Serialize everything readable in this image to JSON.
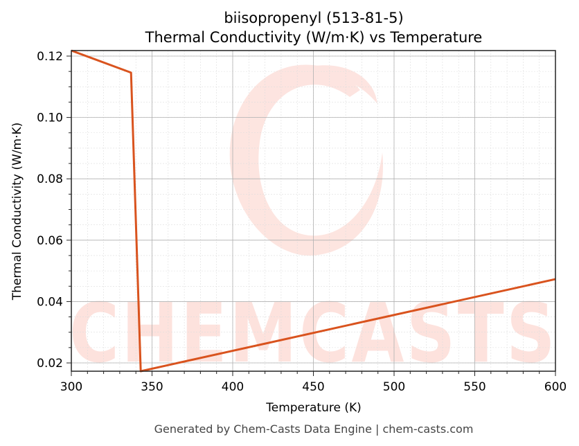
{
  "chart_data": {
    "type": "line",
    "title": "biisopropenyl (513-81-5)",
    "subtitle": "Thermal Conductivity (W/m·K) vs Temperature",
    "xlabel": "Temperature (K)",
    "ylabel": "Thermal Conductivity (W/m·K)",
    "xlim": [
      300,
      600
    ],
    "ylim": [
      0.0173,
      0.1218
    ],
    "xticks": [
      300,
      350,
      400,
      450,
      500,
      550,
      600
    ],
    "xtick_labels": [
      "300",
      "350",
      "400",
      "450",
      "500",
      "550",
      "600"
    ],
    "yticks": [
      0.02,
      0.04,
      0.06,
      0.08,
      0.1,
      0.12
    ],
    "ytick_labels": [
      "0.02",
      "0.04",
      "0.06",
      "0.08",
      "0.10",
      "0.12"
    ],
    "grid": true,
    "minor_grid": true,
    "legend": null,
    "series": [
      {
        "name": "Thermal Conductivity",
        "color": "#d9531e",
        "x": [
          300,
          337,
          343,
          600
        ],
        "y": [
          0.1218,
          0.1146,
          0.0173,
          0.0473
        ]
      }
    ]
  },
  "watermark": {
    "text": "CHEMCASTS",
    "color": "#fde2dd"
  },
  "footer": "Generated by Chem-Casts Data Engine | chem-casts.com"
}
